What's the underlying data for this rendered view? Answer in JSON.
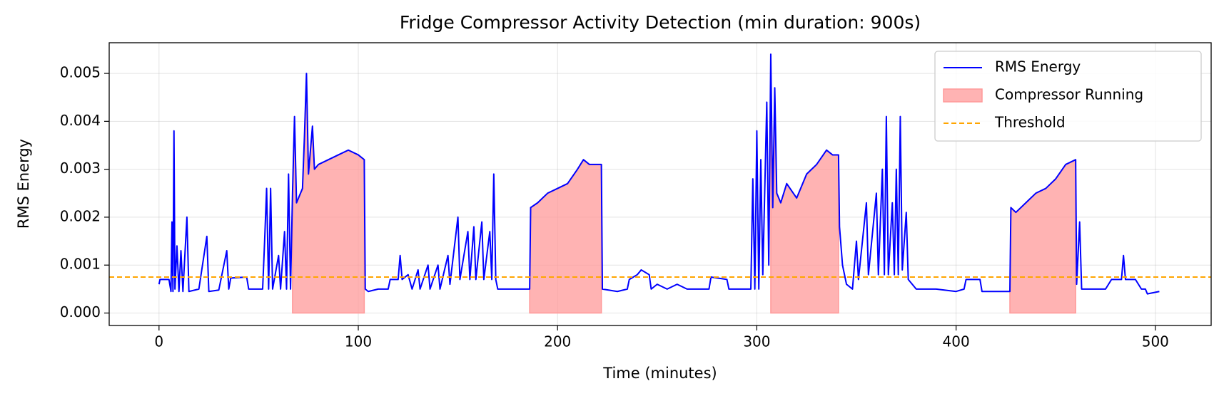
{
  "chart_data": {
    "type": "line",
    "title": "Fridge Compressor Activity Detection (min duration: 900s)",
    "xlabel": "Time (minutes)",
    "ylabel": "RMS Energy",
    "x": [
      0,
      0.5,
      5,
      6,
      6.5,
      7,
      7.5,
      8,
      9,
      10,
      11,
      12,
      14,
      15,
      20,
      24,
      25,
      30,
      34,
      35,
      36,
      44,
      45,
      52,
      53,
      54,
      55,
      56,
      57,
      60,
      61,
      63,
      64,
      65,
      66,
      67,
      68,
      69,
      72,
      73,
      74,
      75,
      77,
      78,
      80,
      85,
      90,
      95,
      100,
      103,
      103.5,
      105,
      110,
      115,
      116,
      120,
      121,
      122,
      125,
      127,
      130,
      131,
      135,
      136,
      140,
      141,
      145,
      146,
      150,
      151,
      155,
      156,
      158,
      159,
      162,
      163,
      166,
      167,
      168,
      169,
      170,
      180,
      186,
      186.5,
      190,
      195,
      200,
      205,
      210,
      213,
      216,
      222,
      222.5,
      230,
      235,
      236,
      240,
      242,
      246,
      247,
      250,
      255,
      260,
      265,
      270,
      276,
      277,
      285,
      286,
      297,
      298,
      299,
      300,
      301,
      302,
      303,
      305,
      306,
      307,
      308,
      309,
      310,
      312,
      315,
      320,
      325,
      330,
      335,
      338,
      341,
      341.5,
      343,
      345,
      348,
      350,
      351,
      355,
      356,
      360,
      361,
      363,
      364,
      365,
      366,
      368,
      369,
      370,
      371,
      372,
      373,
      375,
      376,
      380,
      390,
      400,
      404,
      405,
      412,
      413,
      425,
      427,
      427.5,
      430,
      435,
      440,
      445,
      450,
      455,
      460,
      460.5,
      462,
      463,
      470,
      475,
      478,
      483,
      484,
      485,
      490,
      493,
      495,
      496,
      502
    ],
    "series": [
      {
        "name": "RMS Energy",
        "color": "#0000ff",
        "values": [
          0.0006,
          0.0007,
          0.0007,
          0.00045,
          0.0019,
          0.00045,
          0.0038,
          0.0005,
          0.0014,
          0.00045,
          0.0013,
          0.00045,
          0.002,
          0.00045,
          0.0005,
          0.0016,
          0.00045,
          0.00048,
          0.0013,
          0.0005,
          0.00073,
          0.00075,
          0.0005,
          0.0005,
          0.0015,
          0.0026,
          0.0005,
          0.0026,
          0.0005,
          0.0012,
          0.0005,
          0.0017,
          0.0005,
          0.0029,
          0.0005,
          0.0025,
          0.0041,
          0.0023,
          0.0026,
          0.0037,
          0.005,
          0.0029,
          0.0039,
          0.003,
          0.0031,
          0.0032,
          0.0033,
          0.0034,
          0.0033,
          0.0032,
          0.0005,
          0.00045,
          0.0005,
          0.0005,
          0.0007,
          0.0007,
          0.0012,
          0.0007,
          0.0008,
          0.0005,
          0.0009,
          0.0005,
          0.001,
          0.0005,
          0.001,
          0.0005,
          0.0012,
          0.0006,
          0.002,
          0.0007,
          0.0017,
          0.0007,
          0.0018,
          0.0007,
          0.0019,
          0.0007,
          0.0017,
          0.0007,
          0.0029,
          0.0007,
          0.0005,
          0.0005,
          0.0005,
          0.0022,
          0.0023,
          0.0025,
          0.0026,
          0.0027,
          0.003,
          0.0032,
          0.0031,
          0.0031,
          0.0005,
          0.00045,
          0.0005,
          0.0007,
          0.0008,
          0.0009,
          0.0008,
          0.0005,
          0.0006,
          0.0005,
          0.0006,
          0.0005,
          0.0005,
          0.0005,
          0.00075,
          0.0007,
          0.0005,
          0.0005,
          0.0028,
          0.0005,
          0.0038,
          0.0005,
          0.0032,
          0.0008,
          0.0044,
          0.001,
          0.0054,
          0.0022,
          0.0047,
          0.0025,
          0.0023,
          0.0027,
          0.0024,
          0.0029,
          0.0031,
          0.0034,
          0.0033,
          0.0033,
          0.0018,
          0.001,
          0.0006,
          0.0005,
          0.0015,
          0.0007,
          0.0023,
          0.0008,
          0.0025,
          0.0008,
          0.003,
          0.0008,
          0.0041,
          0.0008,
          0.0023,
          0.0008,
          0.003,
          0.0008,
          0.0041,
          0.0009,
          0.0021,
          0.0007,
          0.0005,
          0.0005,
          0.00045,
          0.0005,
          0.0007,
          0.0007,
          0.00045,
          0.00045,
          0.00045,
          0.0022,
          0.0021,
          0.0023,
          0.0025,
          0.0026,
          0.0028,
          0.0031,
          0.0032,
          0.0006,
          0.0019,
          0.0005,
          0.0005,
          0.0005,
          0.0007,
          0.0007,
          0.0012,
          0.0007,
          0.0007,
          0.0005,
          0.0005,
          0.0004,
          0.00045
        ]
      }
    ],
    "fill": {
      "name": "Compressor Running",
      "color": "#ff9999",
      "spans": [
        [
          67,
          103
        ],
        [
          186,
          222
        ],
        [
          307,
          341
        ],
        [
          427,
          460
        ]
      ]
    },
    "threshold": {
      "name": "Threshold",
      "color": "#ffa500",
      "value": 0.00075
    },
    "xlim": [
      -25,
      528
    ],
    "ylim": [
      -0.00026,
      0.00564
    ],
    "xticks": [
      0,
      100,
      200,
      300,
      400,
      500
    ],
    "yticks": [
      {
        "value": 0,
        "label": "0.000"
      },
      {
        "value": 0.001,
        "label": "0.001"
      },
      {
        "value": 0.002,
        "label": "0.002"
      },
      {
        "value": 0.003,
        "label": "0.003"
      },
      {
        "value": 0.004,
        "label": "0.004"
      },
      {
        "value": 0.005,
        "label": "0.005"
      }
    ],
    "grid": true,
    "legend": "upper right"
  }
}
